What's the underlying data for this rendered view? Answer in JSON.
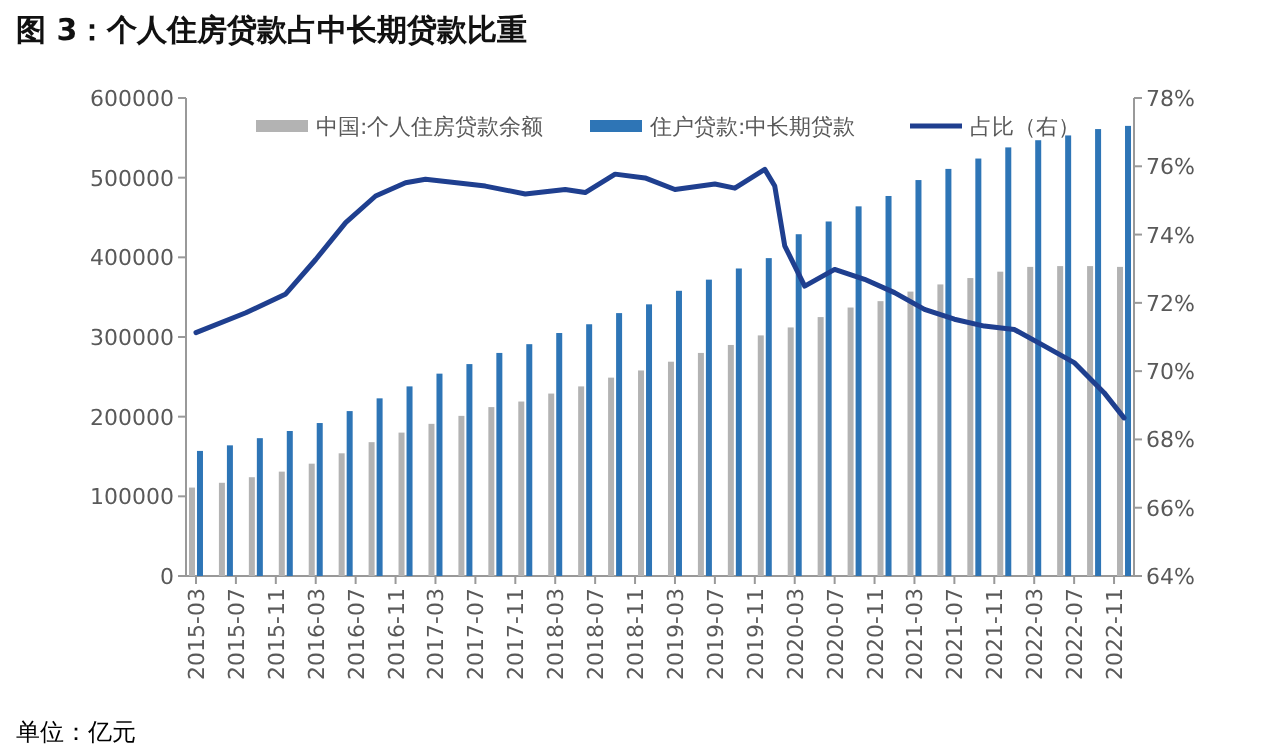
{
  "chart_data": {
    "type": "bar",
    "title": "图 3：个人住房贷款占中长期贷款比重",
    "annotations": [
      "单位：亿元"
    ],
    "x": [
      "2015-03",
      "2015-06",
      "2015-09",
      "2015-12",
      "2016-03",
      "2016-06",
      "2016-09",
      "2016-12",
      "2017-03",
      "2017-06",
      "2017-09",
      "2017-12",
      "2018-03",
      "2018-06",
      "2018-09",
      "2018-12",
      "2019-03",
      "2019-06",
      "2019-09",
      "2019-12",
      "2020-03",
      "2020-06",
      "2020-09",
      "2020-12",
      "2021-03",
      "2021-06",
      "2021-09",
      "2021-12",
      "2022-03",
      "2022-06",
      "2022-09",
      "2022-12"
    ],
    "series": [
      {
        "name": "中国:个人住房贷款余额",
        "color": "#b3b3b3",
        "values": [
          111000,
          117000,
          124000,
          131000,
          141000,
          154000,
          168000,
          180000,
          191000,
          201000,
          212000,
          219000,
          229000,
          238000,
          249000,
          258000,
          269000,
          280000,
          290000,
          302000,
          312000,
          325000,
          337000,
          345000,
          357000,
          366000,
          374000,
          382000,
          388000,
          389000,
          389000,
          388000
        ]
      },
      {
        "name": "住户贷款:中长期贷款",
        "color": "#2e75b6",
        "values": [
          157000,
          164000,
          173000,
          182000,
          192000,
          207000,
          223000,
          238000,
          254000,
          266000,
          280000,
          291000,
          305000,
          316000,
          330000,
          341000,
          358000,
          372000,
          386000,
          399000,
          429000,
          445000,
          464000,
          477000,
          497000,
          511000,
          524000,
          538000,
          547000,
          553000,
          561000,
          565000
        ]
      },
      {
        "name": "占比（右）",
        "type": "line",
        "axis": "y2",
        "color": "#1f3f8f",
        "x": [
          "2015-03",
          "2015-08",
          "2015-12",
          "2016-03",
          "2016-06",
          "2016-09",
          "2016-12",
          "2017-02",
          "2017-08",
          "2017-12",
          "2018-04",
          "2018-06",
          "2018-09",
          "2018-12",
          "2019-03",
          "2019-07",
          "2019-09",
          "2019-12",
          "2020-01",
          "2020-02",
          "2020-04",
          "2020-07",
          "2020-10",
          "2021-01",
          "2021-04",
          "2021-07",
          "2021-10",
          "2022-01",
          "2022-04",
          "2022-07",
          "2022-10",
          "2022-12"
        ],
        "values": [
          71.13,
          71.71,
          72.26,
          73.27,
          74.35,
          75.13,
          75.52,
          75.62,
          75.42,
          75.19,
          75.32,
          75.23,
          75.77,
          75.66,
          75.32,
          75.48,
          75.36,
          75.91,
          75.42,
          73.67,
          72.49,
          72.98,
          72.69,
          72.3,
          71.81,
          71.52,
          71.32,
          71.22,
          70.74,
          70.25,
          69.37,
          68.63
        ]
      }
    ],
    "xlim": [
      "2015-02",
      "2023-01"
    ],
    "xticks": [
      "2015-03",
      "2015-07",
      "2015-11",
      "2016-03",
      "2016-07",
      "2016-11",
      "2017-03",
      "2017-07",
      "2017-11",
      "2018-03",
      "2018-07",
      "2018-11",
      "2019-03",
      "2019-07",
      "2019-11",
      "2020-03",
      "2020-07",
      "2020-11",
      "2021-03",
      "2021-07",
      "2021-11",
      "2022-03",
      "2022-07",
      "2022-11"
    ],
    "ylim": [
      0,
      600000
    ],
    "yticks": [
      0,
      100000,
      200000,
      300000,
      400000,
      500000,
      600000
    ],
    "y2lim": [
      64,
      78
    ],
    "y2ticks": [
      {
        "value": 64,
        "label": "64%"
      },
      {
        "value": 66,
        "label": "66%"
      },
      {
        "value": 68,
        "label": "68%"
      },
      {
        "value": 70,
        "label": "70%"
      },
      {
        "value": 72,
        "label": "72%"
      },
      {
        "value": 74,
        "label": "74%"
      },
      {
        "value": 76,
        "label": "76%"
      },
      {
        "value": 78,
        "label": "78%"
      }
    ],
    "legend": "top",
    "grid": false
  }
}
